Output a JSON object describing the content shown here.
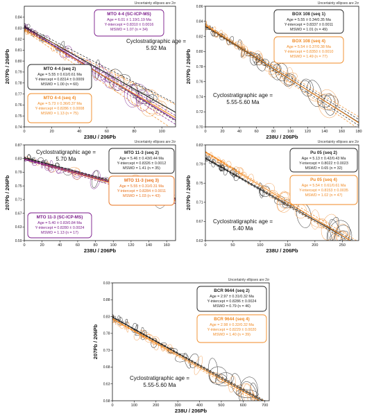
{
  "figure": {
    "uncertainty_note": "Uncertainty ellipses are 2σ",
    "axis_x_label": "238U / 206Pb",
    "axis_y_label": "207Pb / 206Pb"
  },
  "colors": {
    "seq2": "#222222",
    "seq4": "#f08a24",
    "seq3": "#e8701a",
    "scicp": "#7a1a8a",
    "seq1": "#222222",
    "dashed": "#222222",
    "ellipse_dark": "#333333",
    "ellipse_orange": "#f2a35a",
    "ellipse_purple": "#8a3b9a"
  },
  "chart_data": [
    {
      "type": "scatter",
      "subtype": "Tera-Wasserburg isochron",
      "panel": "MTO 4-4",
      "xlim": [
        0,
        110
      ],
      "ylim": [
        0.74,
        0.85
      ],
      "xticks": [
        0,
        20,
        40,
        60,
        80,
        100
      ],
      "yticks": [
        0.74,
        0.75,
        0.76,
        0.77,
        0.78,
        0.79,
        0.8,
        0.81,
        0.82,
        0.83,
        0.84
      ],
      "x_scale_max": 110,
      "cyclo_text": [
        "Cyclostratigraphic age =",
        "5.92 Ma"
      ],
      "series": [
        {
          "name": "MTO 4-4 (SC-ICP-MS)",
          "color_key": "scicp",
          "lines": [
            "Age = 6.01 ± 1.19/1.19 Ma",
            "Y-intercept = 0.8310 ± 0.0016",
            "MSWD = 1.07 (n = 34)"
          ],
          "intercept": 0.831,
          "slope": -0.00077
        },
        {
          "name": "MTO 4-4 (seq 2)",
          "color_key": "seq2",
          "lines": [
            "Age = 5.55 ± 0.61/0.61 Ma",
            "Y-intercept = 0.8314 ± 0.0009",
            "MSWD = 1.00 (n = 60)"
          ],
          "intercept": 0.8314,
          "slope": -0.00071
        },
        {
          "name": "MTO 4-4 (seq 4)",
          "color_key": "seq4",
          "lines": [
            "Age = 5.73 ± 0.36/0.37 Ma",
            "Y-intercept = 0.8286 ± 0.0008",
            "MSWD = 1.13 (n = 75)"
          ],
          "intercept": 0.8286,
          "slope": -0.00073
        }
      ]
    },
    {
      "type": "scatter",
      "subtype": "Tera-Wasserburg isochron",
      "panel": "BOX 108",
      "xlim": [
        0,
        180
      ],
      "ylim": [
        0.7,
        0.86
      ],
      "xticks": [
        0,
        20,
        40,
        60,
        80,
        100,
        120,
        140,
        160,
        180
      ],
      "yticks": [
        0.7,
        0.72,
        0.74,
        0.76,
        0.78,
        0.8,
        0.82,
        0.84,
        0.86
      ],
      "cyclo_text": [
        "Cyclostratigraphic age =",
        "5.55-5.60 Ma"
      ],
      "series": [
        {
          "name": "BOX 108 (seq 1)",
          "color_key": "seq1",
          "lines": [
            "Age = 5.55 ± 0.34/0.35 Ma",
            "Y-intercept = 0.8337 ± 0.0011",
            "MSWD = 1.01 (n = 49)"
          ],
          "intercept": 0.8337,
          "slope": -0.00071
        },
        {
          "name": "BOX 108 (seq 4)",
          "color_key": "seq4",
          "lines": [
            "Age = 5.54 ± 0.37/0.38 Ma",
            "Y-intercept = 0.8350 ± 0.0010",
            "MSWD = 1.49 (n = 77)"
          ],
          "intercept": 0.835,
          "slope": -0.00072
        }
      ]
    },
    {
      "type": "scatter",
      "subtype": "Tera-Wasserburg isochron",
      "panel": "MTO 11-3",
      "xlim": [
        0,
        170
      ],
      "ylim": [
        0.59,
        0.87
      ],
      "xticks": [
        0,
        20,
        40,
        60,
        80,
        100,
        120,
        140,
        160
      ],
      "yticks": [
        0.59,
        0.63,
        0.67,
        0.71,
        0.75,
        0.79,
        0.83,
        0.87
      ],
      "cyclo_text": [
        "Cyclostratigraphic age =",
        "5.70 Ma"
      ],
      "series": [
        {
          "name": "MTO 11-3 (seq 2)",
          "color_key": "seq2",
          "lines": [
            "Age = 5.46 ± 0.43/0.44 Ma",
            "Y-intercept = 0.8326 ± 0.0012",
            "MSWD = 1.41 (n = 35)"
          ],
          "intercept": 0.8326,
          "slope": -0.0007
        },
        {
          "name": "MTO 11-3 (seq 3)",
          "color_key": "seq3",
          "lines": [
            "Age = 5.55 ± 0.31/0.31 Ma",
            "Y-intercept = 0.8284 ± 0.0011",
            "MSWD = 1.03 (n = 43)"
          ],
          "intercept": 0.8284,
          "slope": -0.00072
        },
        {
          "name": "MTO 11-3 (SC-ICP-MS)",
          "color_key": "scicp",
          "lines": [
            "Age = 5.40 ± 0.83/0.84 Ma",
            "Y-intercept = 0.8280 ± 0.0024",
            "MSWD = 1.13 (n = 17)"
          ],
          "intercept": 0.828,
          "slope": -0.00069
        }
      ]
    },
    {
      "type": "scatter",
      "subtype": "Tera-Wasserburg isochron",
      "panel": "Pu 05",
      "xlim": [
        0,
        280
      ],
      "ylim": [
        0.63,
        0.83
      ],
      "xticks": [
        0,
        50,
        100,
        150,
        200,
        250
      ],
      "yticks": [
        0.63,
        0.67,
        0.71,
        0.75,
        0.79,
        0.83
      ],
      "cyclo_text": [
        "Cyclostratigraphic age =",
        "5.40 Ma"
      ],
      "series": [
        {
          "name": "Pu 05 (seq 2)",
          "color_key": "seq2",
          "lines": [
            "Age = 5.13 ± 0.42/0.43 Ma",
            "Y-intercept = 0.8022 ± 0.0023",
            "MSWD = 0.65 (n = 32)"
          ],
          "intercept": 0.8022,
          "slope": -0.00065
        },
        {
          "name": "Pu 05 (seq 4)",
          "color_key": "seq4",
          "lines": [
            "Age = 5.54 ± 0.61/0.61 Ma",
            "Y-intercept = 0.8153 ± 0.0035",
            "MSWD = 1.02 (n = 47)"
          ],
          "intercept": 0.8153,
          "slope": -0.0007
        }
      ]
    },
    {
      "type": "scatter",
      "subtype": "Tera-Wasserburg isochron",
      "panel": "BCR 9644",
      "xlim": [
        0,
        720
      ],
      "ylim": [
        0.58,
        0.93
      ],
      "xticks": [
        0,
        100,
        200,
        300,
        400,
        500,
        600,
        700
      ],
      "yticks": [
        0.58,
        0.63,
        0.68,
        0.73,
        0.78,
        0.83,
        0.88,
        0.93
      ],
      "cyclo_text": [
        "Cyclostratigraphic age =",
        "5.55-5.60 Ma"
      ],
      "series": [
        {
          "name": "BCR 9644 (seq 2)",
          "color_key": "seq2",
          "lines": [
            "Age = 2.97 ± 0.31/0.32 Ma",
            "Y-intercept = 0.8286 ± 0.0024",
            "MSWD = 0.79 (n = 46)"
          ],
          "intercept": 0.8286,
          "slope": -0.00036
        },
        {
          "name": "BCR 9644 (seq 4)",
          "color_key": "seq4",
          "lines": [
            "Age = 2.98 ± 0.32/0.32 Ma",
            "Y-intercept = 0.8229 ± 0.0020",
            "MSWD = 1.40 (n = 39)"
          ],
          "intercept": 0.8229,
          "slope": -0.00036
        }
      ]
    }
  ]
}
